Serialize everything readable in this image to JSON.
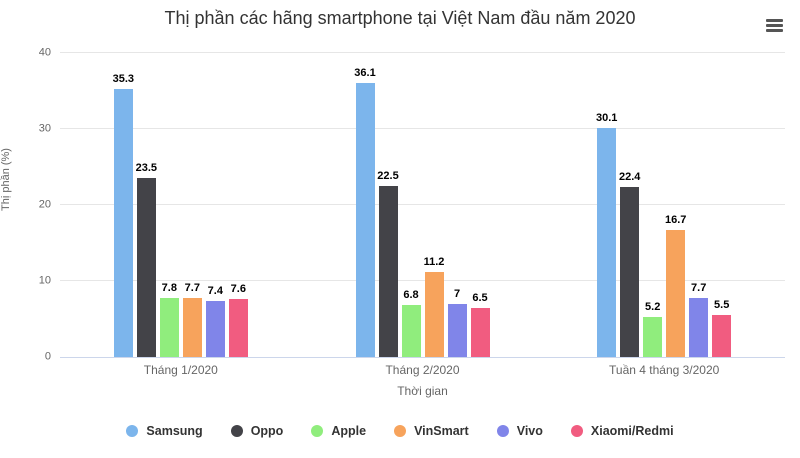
{
  "chart_data": {
    "type": "bar",
    "title": "Thị phần các hãng smartphone tại Việt Nam đầu năm 2020",
    "xlabel": "Thời gian",
    "ylabel": "Thị phần (%)",
    "categories": [
      "Tháng 1/2020",
      "Tháng 2/2020",
      "Tuần 4 tháng 3/2020"
    ],
    "series": [
      {
        "name": "Samsung",
        "color": "#7cb5ec",
        "values": [
          35.3,
          36.1,
          30.1
        ]
      },
      {
        "name": "Oppo",
        "color": "#434348",
        "values": [
          23.5,
          22.5,
          22.4
        ]
      },
      {
        "name": "Apple",
        "color": "#90ed7d",
        "values": [
          7.8,
          6.8,
          5.2
        ]
      },
      {
        "name": "VinSmart",
        "color": "#f7a35c",
        "values": [
          7.7,
          11.2,
          16.7
        ]
      },
      {
        "name": "Vivo",
        "color": "#8085e9",
        "values": [
          7.4,
          7,
          7.7
        ]
      },
      {
        "name": "Xiaomi/Redmi",
        "color": "#f15c80",
        "values": [
          7.6,
          6.5,
          5.5
        ]
      }
    ],
    "ylim": [
      0,
      40
    ],
    "yticks": [
      0,
      10,
      20,
      30,
      40
    ],
    "grid": true,
    "legend_position": "bottom",
    "data_labels": true
  },
  "controls": {
    "menu_icon": "hamburger"
  },
  "styles": {
    "axis_line_color": "#ccd6eb",
    "grid_color": "#e6e6e6",
    "tick_label_color": "#666666",
    "title_color": "#333333",
    "data_label_color": "#000000",
    "legend_text_color": "#333333",
    "menu_icon_color": "#555555"
  }
}
